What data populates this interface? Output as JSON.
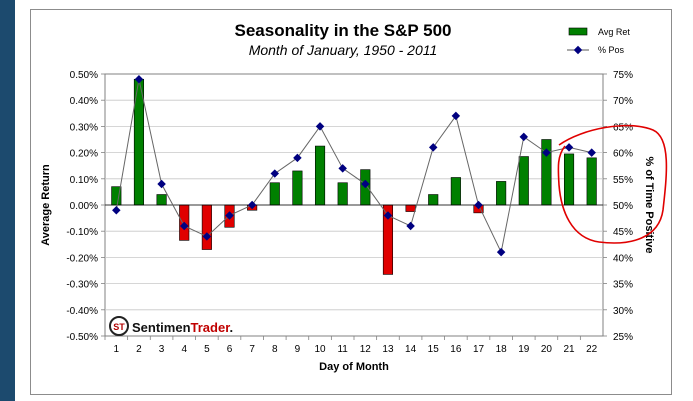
{
  "chart_data": {
    "type": "bar",
    "title": "Seasonality in the S&P 500",
    "subtitle": "Month of January, 1950 - 2011",
    "xlabel": "Day of Month",
    "ylabel_left": "Average Return",
    "ylabel_right": "% of Time Positive",
    "categories": [
      "1",
      "2",
      "3",
      "4",
      "5",
      "6",
      "7",
      "8",
      "9",
      "10",
      "11",
      "12",
      "13",
      "14",
      "15",
      "16",
      "17",
      "18",
      "19",
      "20",
      "21",
      "22"
    ],
    "ylim_left": [
      -0.5,
      0.5
    ],
    "ylim_right": [
      25,
      75
    ],
    "left_ticks": [
      "-0.50%",
      "-0.40%",
      "-0.30%",
      "-0.20%",
      "-0.10%",
      "0.00%",
      "0.10%",
      "0.20%",
      "0.30%",
      "0.40%",
      "0.50%"
    ],
    "right_ticks": [
      "25%",
      "30%",
      "35%",
      "40%",
      "45%",
      "50%",
      "55%",
      "60%",
      "65%",
      "70%",
      "75%"
    ],
    "grid": true,
    "legend_position": "top-right",
    "series": [
      {
        "name": "Avg Ret",
        "kind": "bar",
        "axis": "left",
        "positive_color": "#008000",
        "negative_color": "#e00000",
        "values": [
          0.07,
          0.48,
          0.04,
          -0.135,
          -0.17,
          -0.085,
          -0.02,
          0.085,
          0.13,
          0.225,
          0.085,
          0.135,
          -0.265,
          -0.025,
          0.04,
          0.105,
          -0.03,
          0.09,
          0.185,
          0.25,
          0.195,
          0.18
        ]
      },
      {
        "name": "% Pos",
        "kind": "line",
        "axis": "right",
        "color": "#000080",
        "values": [
          49,
          74,
          54,
          46,
          44,
          48,
          50,
          56,
          59,
          65,
          57,
          54,
          48,
          46,
          61,
          67,
          50,
          41,
          63,
          60,
          61,
          60
        ]
      }
    ],
    "annotation": {
      "shape": "hand-drawn ellipse",
      "color": "#e00000"
    }
  },
  "watermark": {
    "part1": "Sentimen",
    "part2": "Trader",
    "suffix": ".",
    "logo_letters": "ST"
  }
}
